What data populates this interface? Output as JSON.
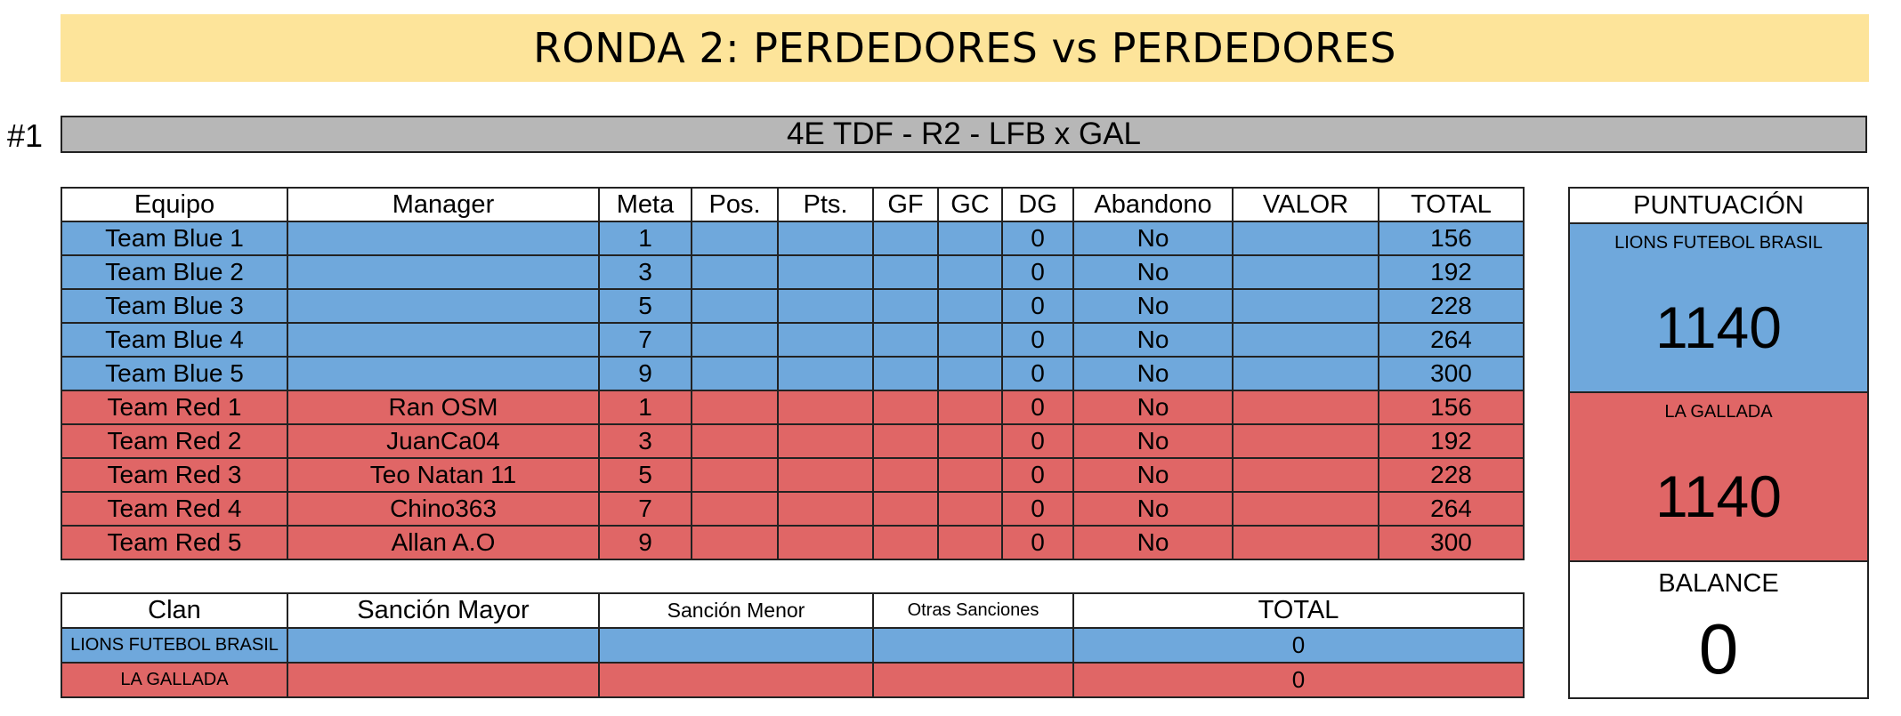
{
  "banner_title": "RONDA 2: PERDEDORES vs PERDEDORES",
  "match": {
    "number": "#1",
    "title": "4E TDF - R2 - LFB x GAL"
  },
  "teams_table": {
    "headers": [
      "Equipo",
      "Manager",
      "Meta",
      "Pos.",
      "Pts.",
      "GF",
      "GC",
      "DG",
      "Abandono",
      "VALOR",
      "TOTAL"
    ],
    "rows": [
      {
        "team": "Team Blue 1",
        "manager": "",
        "meta": "1",
        "pos": "",
        "pts": "",
        "gf": "",
        "gc": "",
        "dg": "0",
        "abandono": "No",
        "valor": "",
        "total": "156"
      },
      {
        "team": "Team Blue 2",
        "manager": "",
        "meta": "3",
        "pos": "",
        "pts": "",
        "gf": "",
        "gc": "",
        "dg": "0",
        "abandono": "No",
        "valor": "",
        "total": "192"
      },
      {
        "team": "Team Blue 3",
        "manager": "",
        "meta": "5",
        "pos": "",
        "pts": "",
        "gf": "",
        "gc": "",
        "dg": "0",
        "abandono": "No",
        "valor": "",
        "total": "228"
      },
      {
        "team": "Team Blue 4",
        "manager": "",
        "meta": "7",
        "pos": "",
        "pts": "",
        "gf": "",
        "gc": "",
        "dg": "0",
        "abandono": "No",
        "valor": "",
        "total": "264"
      },
      {
        "team": "Team Blue 5",
        "manager": "",
        "meta": "9",
        "pos": "",
        "pts": "",
        "gf": "",
        "gc": "",
        "dg": "0",
        "abandono": "No",
        "valor": "",
        "total": "300"
      },
      {
        "team": "Team Red 1",
        "manager": "Ran OSM",
        "meta": "1",
        "pos": "",
        "pts": "",
        "gf": "",
        "gc": "",
        "dg": "0",
        "abandono": "No",
        "valor": "",
        "total": "156"
      },
      {
        "team": "Team Red 2",
        "manager": "JuanCa04",
        "meta": "3",
        "pos": "",
        "pts": "",
        "gf": "",
        "gc": "",
        "dg": "0",
        "abandono": "No",
        "valor": "",
        "total": "192"
      },
      {
        "team": "Team Red 3",
        "manager": "Teo Natan 11",
        "meta": "5",
        "pos": "",
        "pts": "",
        "gf": "",
        "gc": "",
        "dg": "0",
        "abandono": "No",
        "valor": "",
        "total": "228"
      },
      {
        "team": "Team Red 4",
        "manager": "Chino363",
        "meta": "7",
        "pos": "",
        "pts": "",
        "gf": "",
        "gc": "",
        "dg": "0",
        "abandono": "No",
        "valor": "",
        "total": "264"
      },
      {
        "team": "Team Red 5",
        "manager": "Allan A.O",
        "meta": "9",
        "pos": "",
        "pts": "",
        "gf": "",
        "gc": "",
        "dg": "0",
        "abandono": "No",
        "valor": "",
        "total": "300"
      }
    ]
  },
  "sanctions_table": {
    "headers": [
      "Clan",
      "Sanción Mayor",
      "Sanción Menor",
      "Otras Sanciones",
      "TOTAL"
    ],
    "rows": [
      {
        "clan": "LIONS FUTEBOL BRASIL",
        "mayor": "",
        "menor": "",
        "otras": "",
        "total": "0"
      },
      {
        "clan": "LA GALLADA",
        "mayor": "",
        "menor": "",
        "otras": "",
        "total": "0"
      }
    ]
  },
  "scoreboard": {
    "title": "PUNTUACIÓN",
    "blue": {
      "clan": "LIONS FUTEBOL BRASIL",
      "score": "1140"
    },
    "red": {
      "clan": "LA GALLADA",
      "score": "1140"
    },
    "balance_label": "BALANCE",
    "balance_value": "0"
  },
  "colors": {
    "banner": "#fde49a",
    "header_bar": "#b7b7b7",
    "blue_team": "#6fa8dc",
    "red_team": "#e06666"
  }
}
